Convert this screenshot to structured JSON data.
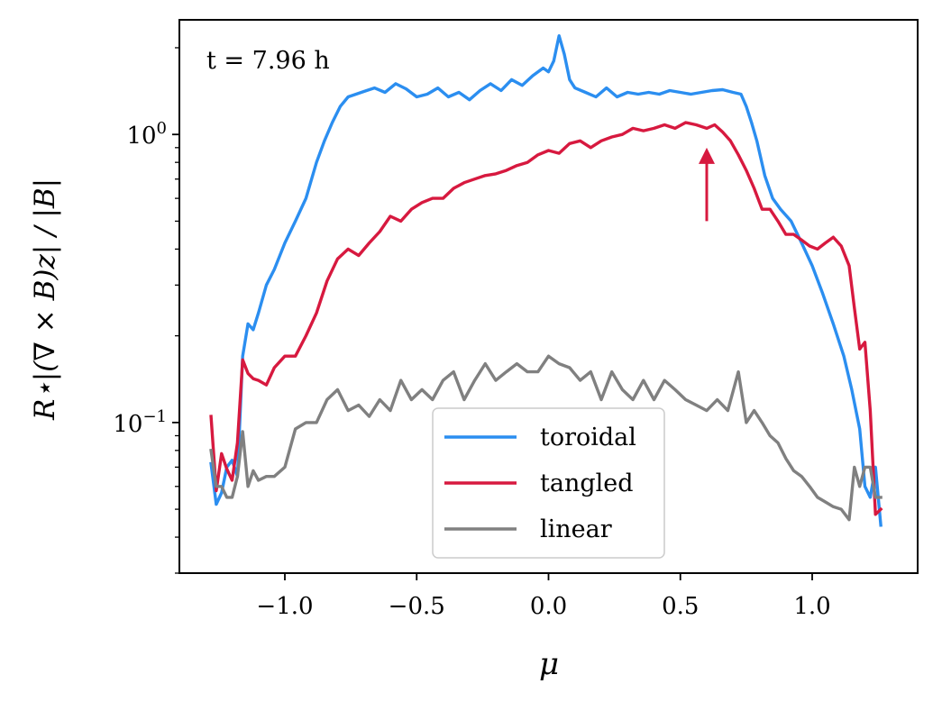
{
  "chart_data": {
    "type": "line",
    "title": "",
    "annotation": "t = 7.96 h",
    "xlabel": "μ",
    "ylabel": "R⋆|(∇ × B)z| / |B|",
    "yscale": "log",
    "xlim": [
      -1.4,
      1.4
    ],
    "ylim": [
      0.03,
      2.5
    ],
    "xticks": [
      -1.0,
      -0.5,
      0.0,
      0.5,
      1.0
    ],
    "xtick_labels": [
      "−1.0",
      "−0.5",
      "0.0",
      "0.5",
      "1.0"
    ],
    "ytick_labels": [
      {
        "value": 0.1,
        "base": "10",
        "exp": "−1"
      },
      {
        "value": 1.0,
        "base": "10",
        "exp": "0"
      }
    ],
    "legend_location": "lower-center",
    "arrow": {
      "x": 0.6,
      "y_from": 0.5,
      "y_to": 0.9,
      "color": "#d7193f"
    },
    "series": [
      {
        "name": "toroidal",
        "color": "#2b8ef0",
        "x": [
          -1.28,
          -1.26,
          -1.24,
          -1.22,
          -1.2,
          -1.18,
          -1.16,
          -1.14,
          -1.12,
          -1.1,
          -1.07,
          -1.04,
          -1.0,
          -0.96,
          -0.92,
          -0.88,
          -0.85,
          -0.82,
          -0.79,
          -0.76,
          -0.73,
          -0.71,
          -0.69,
          -0.66,
          -0.62,
          -0.58,
          -0.54,
          -0.5,
          -0.46,
          -0.42,
          -0.38,
          -0.34,
          -0.3,
          -0.26,
          -0.22,
          -0.18,
          -0.14,
          -0.1,
          -0.06,
          -0.02,
          0.0,
          0.02,
          0.04,
          0.06,
          0.08,
          0.1,
          0.14,
          0.18,
          0.22,
          0.26,
          0.3,
          0.34,
          0.38,
          0.42,
          0.46,
          0.5,
          0.54,
          0.58,
          0.62,
          0.66,
          0.7,
          0.73,
          0.75,
          0.77,
          0.79,
          0.82,
          0.85,
          0.88,
          0.92,
          0.96,
          1.0,
          1.04,
          1.08,
          1.12,
          1.15,
          1.18,
          1.2,
          1.22,
          1.24,
          1.26
        ],
        "values": [
          0.072,
          0.052,
          0.057,
          0.07,
          0.074,
          0.065,
          0.17,
          0.22,
          0.21,
          0.24,
          0.3,
          0.34,
          0.42,
          0.5,
          0.6,
          0.8,
          0.95,
          1.1,
          1.25,
          1.35,
          1.38,
          1.4,
          1.42,
          1.45,
          1.4,
          1.5,
          1.44,
          1.35,
          1.38,
          1.45,
          1.35,
          1.4,
          1.32,
          1.42,
          1.5,
          1.42,
          1.55,
          1.48,
          1.6,
          1.7,
          1.65,
          1.8,
          2.2,
          1.9,
          1.55,
          1.45,
          1.4,
          1.35,
          1.45,
          1.35,
          1.4,
          1.38,
          1.4,
          1.38,
          1.42,
          1.4,
          1.38,
          1.4,
          1.42,
          1.43,
          1.4,
          1.38,
          1.25,
          1.1,
          0.95,
          0.72,
          0.6,
          0.55,
          0.5,
          0.42,
          0.35,
          0.28,
          0.22,
          0.17,
          0.13,
          0.095,
          0.06,
          0.055,
          0.07,
          0.044
        ]
      },
      {
        "name": "tangled",
        "color": "#d7193f",
        "x": [
          -1.28,
          -1.26,
          -1.24,
          -1.22,
          -1.2,
          -1.18,
          -1.16,
          -1.14,
          -1.12,
          -1.1,
          -1.07,
          -1.04,
          -1.0,
          -0.96,
          -0.92,
          -0.88,
          -0.84,
          -0.8,
          -0.76,
          -0.72,
          -0.68,
          -0.64,
          -0.6,
          -0.56,
          -0.52,
          -0.48,
          -0.44,
          -0.4,
          -0.36,
          -0.32,
          -0.28,
          -0.24,
          -0.2,
          -0.16,
          -0.12,
          -0.08,
          -0.04,
          0.0,
          0.04,
          0.08,
          0.12,
          0.16,
          0.2,
          0.24,
          0.28,
          0.32,
          0.36,
          0.4,
          0.44,
          0.48,
          0.52,
          0.56,
          0.6,
          0.63,
          0.66,
          0.69,
          0.72,
          0.75,
          0.78,
          0.81,
          0.84,
          0.87,
          0.9,
          0.93,
          0.96,
          0.99,
          1.02,
          1.05,
          1.08,
          1.11,
          1.14,
          1.16,
          1.18,
          1.2,
          1.22,
          1.24,
          1.26
        ],
        "values": [
          0.105,
          0.058,
          0.078,
          0.069,
          0.063,
          0.085,
          0.165,
          0.148,
          0.142,
          0.14,
          0.135,
          0.155,
          0.17,
          0.17,
          0.2,
          0.24,
          0.31,
          0.37,
          0.4,
          0.38,
          0.42,
          0.46,
          0.52,
          0.5,
          0.55,
          0.58,
          0.6,
          0.6,
          0.65,
          0.68,
          0.7,
          0.72,
          0.73,
          0.75,
          0.78,
          0.8,
          0.85,
          0.88,
          0.86,
          0.93,
          0.95,
          0.9,
          0.95,
          0.98,
          1.0,
          1.05,
          1.03,
          1.05,
          1.08,
          1.05,
          1.1,
          1.08,
          1.05,
          1.08,
          1.02,
          0.95,
          0.85,
          0.75,
          0.65,
          0.55,
          0.55,
          0.5,
          0.45,
          0.45,
          0.43,
          0.41,
          0.4,
          0.42,
          0.44,
          0.41,
          0.35,
          0.25,
          0.18,
          0.19,
          0.11,
          0.048,
          0.05
        ]
      },
      {
        "name": "linear",
        "color": "#808080",
        "x": [
          -1.28,
          -1.26,
          -1.24,
          -1.22,
          -1.2,
          -1.18,
          -1.16,
          -1.14,
          -1.12,
          -1.1,
          -1.07,
          -1.04,
          -1.0,
          -0.96,
          -0.92,
          -0.88,
          -0.84,
          -0.8,
          -0.76,
          -0.72,
          -0.68,
          -0.64,
          -0.6,
          -0.56,
          -0.52,
          -0.48,
          -0.44,
          -0.4,
          -0.36,
          -0.32,
          -0.28,
          -0.24,
          -0.2,
          -0.16,
          -0.12,
          -0.08,
          -0.04,
          0.0,
          0.04,
          0.08,
          0.12,
          0.16,
          0.2,
          0.24,
          0.28,
          0.32,
          0.36,
          0.4,
          0.44,
          0.48,
          0.52,
          0.56,
          0.6,
          0.64,
          0.68,
          0.72,
          0.75,
          0.78,
          0.81,
          0.84,
          0.87,
          0.9,
          0.93,
          0.96,
          0.99,
          1.02,
          1.05,
          1.08,
          1.11,
          1.14,
          1.16,
          1.18,
          1.2,
          1.22,
          1.24,
          1.26
        ],
        "values": [
          0.08,
          0.06,
          0.06,
          0.055,
          0.055,
          0.065,
          0.093,
          0.06,
          0.068,
          0.063,
          0.065,
          0.065,
          0.07,
          0.095,
          0.1,
          0.1,
          0.12,
          0.13,
          0.11,
          0.115,
          0.105,
          0.12,
          0.11,
          0.14,
          0.12,
          0.13,
          0.12,
          0.14,
          0.15,
          0.12,
          0.14,
          0.16,
          0.14,
          0.15,
          0.16,
          0.15,
          0.15,
          0.17,
          0.16,
          0.155,
          0.14,
          0.15,
          0.12,
          0.15,
          0.13,
          0.12,
          0.14,
          0.12,
          0.14,
          0.13,
          0.12,
          0.115,
          0.11,
          0.12,
          0.11,
          0.15,
          0.1,
          0.11,
          0.1,
          0.09,
          0.085,
          0.075,
          0.068,
          0.065,
          0.06,
          0.055,
          0.053,
          0.051,
          0.05,
          0.046,
          0.07,
          0.06,
          0.07,
          0.07,
          0.055,
          0.055
        ]
      }
    ]
  }
}
